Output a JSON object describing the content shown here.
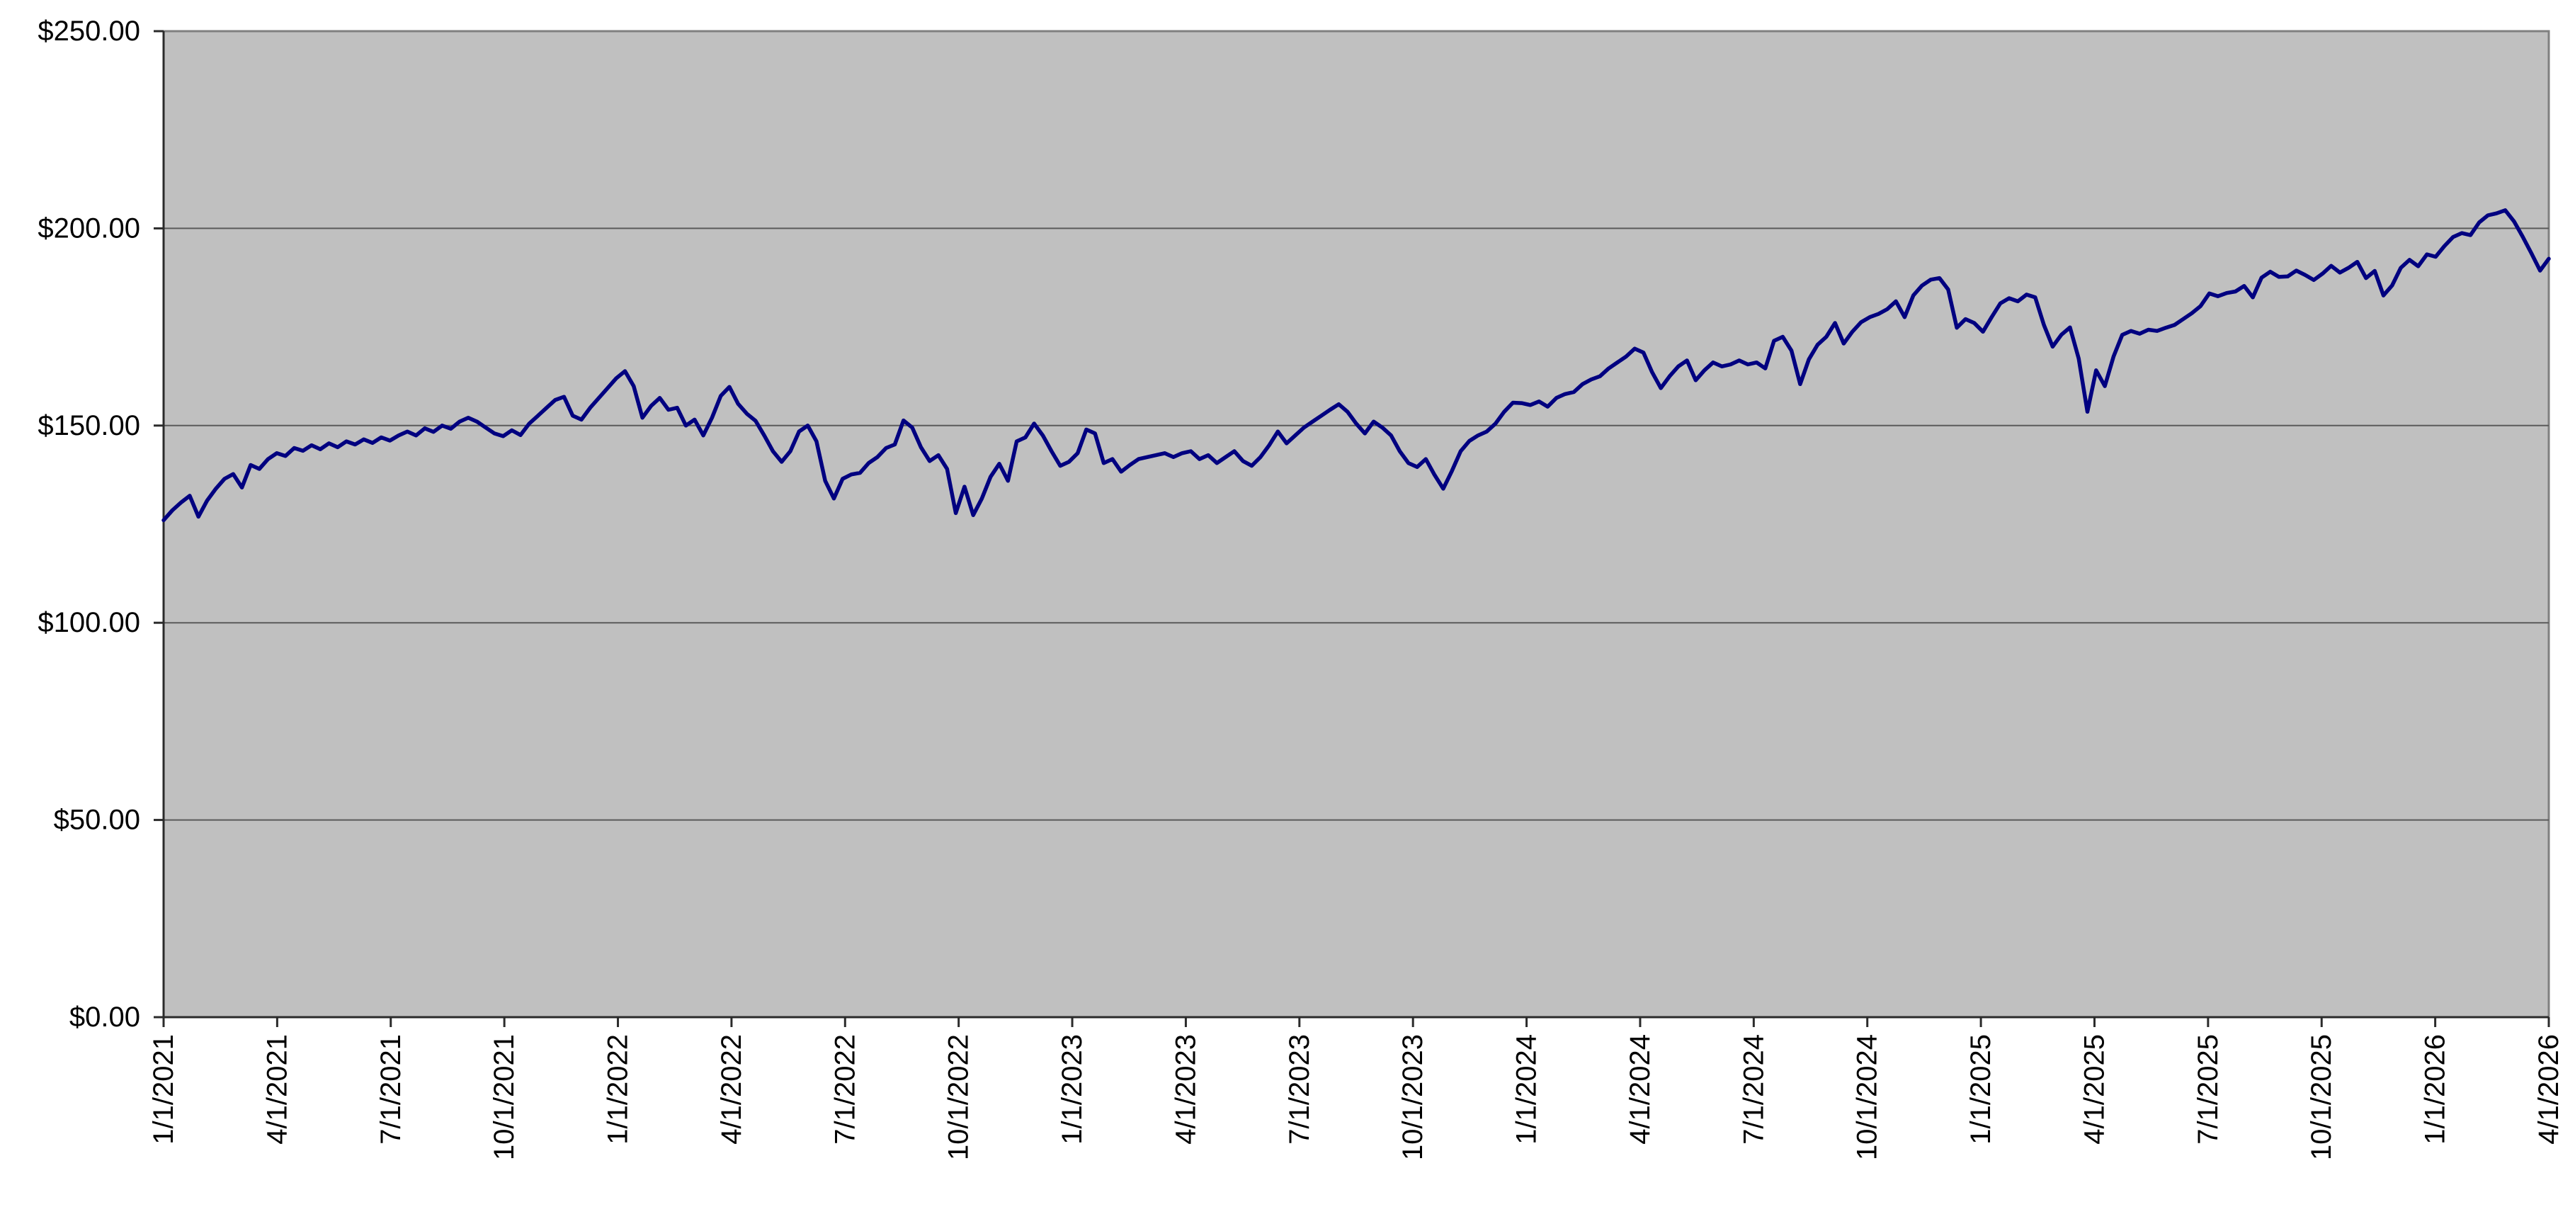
{
  "chart_data": {
    "type": "line",
    "title": "",
    "xlabel": "",
    "ylabel": "",
    "legend": "none",
    "grid": "horizontal",
    "plot_bg_color": "#c0c0c0",
    "outer_bg_color": "#ffffff",
    "line_color": "#000080",
    "gridline_color": "#5a5a5a",
    "border_color": "#808080",
    "axis_color": "#2b2b2b",
    "tick_label_color": "#000000",
    "ylim": [
      0,
      250
    ],
    "y_tick_step": 50,
    "y_tick_labels": [
      "$0.00",
      "$50.00",
      "$100.00",
      "$150.00",
      "$200.00",
      "$250.00"
    ],
    "x_tick_labels": [
      "1/1/2021",
      "4/1/2021",
      "7/1/2021",
      "10/1/2021",
      "1/1/2022",
      "4/1/2022",
      "7/1/2022",
      "10/1/2022",
      "1/1/2023",
      "4/1/2023",
      "7/1/2023",
      "10/1/2023",
      "1/1/2024",
      "4/1/2024",
      "7/1/2024",
      "10/1/2024",
      "1/1/2025",
      "4/1/2025",
      "7/1/2025",
      "10/1/2025",
      "1/1/2026",
      "4/1/2026"
    ],
    "x_start_date": "1/1/2021",
    "x_end_date": "4/1/2026",
    "sampling": "weekly values in USD, first point 1/1/2021, last point 4/1/2026",
    "values": [
      126.0,
      128.5,
      130.5,
      132.2,
      126.9,
      131.0,
      134.0,
      136.5,
      137.7,
      134.3,
      140.0,
      139.0,
      141.5,
      143.0,
      142.3,
      144.3,
      143.6,
      145.0,
      144.0,
      145.5,
      144.5,
      146.0,
      145.2,
      146.5,
      145.6,
      147.0,
      146.2,
      147.5,
      148.5,
      147.5,
      149.3,
      148.4,
      150.0,
      149.2,
      151.0,
      152.0,
      151.0,
      149.5,
      148.0,
      147.3,
      148.8,
      147.6,
      150.5,
      152.5,
      154.5,
      156.5,
      157.3,
      152.5,
      151.5,
      154.5,
      157.0,
      159.5,
      162.0,
      163.8,
      160.0,
      152.0,
      155.0,
      157.0,
      154.0,
      154.5,
      150.0,
      151.5,
      147.5,
      152.0,
      157.5,
      159.8,
      155.5,
      153.0,
      151.2,
      147.5,
      143.5,
      140.8,
      143.5,
      148.5,
      150.0,
      146.0,
      136.0,
      131.5,
      136.5,
      137.6,
      138.0,
      140.5,
      142.0,
      144.3,
      145.2,
      151.3,
      149.5,
      144.5,
      141.0,
      142.5,
      139.0,
      127.8,
      134.5,
      127.3,
      131.5,
      137.0,
      140.3,
      136.0,
      146.0,
      147.0,
      150.5,
      147.5,
      143.5,
      139.8,
      140.8,
      143.0,
      149.0,
      148.0,
      140.5,
      141.5,
      138.3,
      140.0,
      141.5,
      142.0,
      142.5,
      143.0,
      142.0,
      143.0,
      143.5,
      141.5,
      142.5,
      140.5,
      142.0,
      143.5,
      141.0,
      139.8,
      142.0,
      145.0,
      148.5,
      145.5,
      147.5,
      149.5,
      151.0,
      152.5,
      154.0,
      155.4,
      153.5,
      150.5,
      148.0,
      151.0,
      149.5,
      147.5,
      143.5,
      140.5,
      139.5,
      141.5,
      137.5,
      134.0,
      138.5,
      143.5,
      146.1,
      147.5,
      148.5,
      150.5,
      153.5,
      155.8,
      155.7,
      155.2,
      156.1,
      154.8,
      157.0,
      158.0,
      158.5,
      160.5,
      161.7,
      162.5,
      164.5,
      166.0,
      167.5,
      169.5,
      168.5,
      163.5,
      159.5,
      162.5,
      165.0,
      166.5,
      161.5,
      164.0,
      166.0,
      165.0,
      165.5,
      166.5,
      165.5,
      166.0,
      164.5,
      171.5,
      172.5,
      169.0,
      160.5,
      166.8,
      170.5,
      172.5,
      176.0,
      170.8,
      173.8,
      176.2,
      177.5,
      178.3,
      179.5,
      181.5,
      177.5,
      183.0,
      185.5,
      187.0,
      187.4,
      184.5,
      174.8,
      177.0,
      176.0,
      173.8,
      177.5,
      181.0,
      182.3,
      181.5,
      183.2,
      182.5,
      175.5,
      170.0,
      173.0,
      174.9,
      167.0,
      153.5,
      164.0,
      160.0,
      167.5,
      173.0,
      174.0,
      173.3,
      174.3,
      174.0,
      174.8,
      175.5,
      177.0,
      178.5,
      180.3,
      183.5,
      182.8,
      183.6,
      184.0,
      185.4,
      182.5,
      187.5,
      189.0,
      187.7,
      187.8,
      189.3,
      188.2,
      186.9,
      188.5,
      190.5,
      188.8,
      190.0,
      191.5,
      187.4,
      189.2,
      183.0,
      185.5,
      190.0,
      192.0,
      190.4,
      193.4,
      192.8,
      195.5,
      197.8,
      198.8,
      198.3,
      201.5,
      203.3,
      203.8,
      204.6,
      201.8,
      197.9,
      193.7,
      189.3,
      192.3
    ]
  }
}
